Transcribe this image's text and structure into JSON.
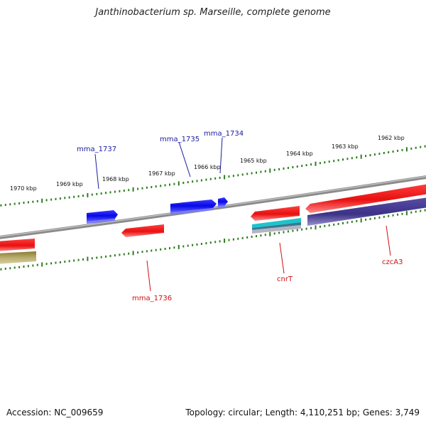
{
  "title": "Janthinobacterium sp. Marseille, complete genome",
  "footer": {
    "accession": "Accession: NC_009659",
    "topology": "Topology: circular; Length: 4,110,251 bp; Genes: 3,749"
  },
  "colors": {
    "backbone": "#7a7a7a",
    "ticks": "#2e7d1f",
    "forward_gene": "#1010ee",
    "reverse_gene": "#ee1010",
    "forward_label": "#1a1aa0",
    "reverse_label": "#cc1111",
    "cds_dark": "#4a3d8f",
    "cds_cyan": "#20c0c8",
    "cds_grey": "#a8a8b8",
    "cds_olive": "#b0a868"
  },
  "ruler": {
    "labels": [
      "1970 kbp",
      "1969 kbp",
      "1968 kbp",
      "1967 kbp",
      "1966 kbp",
      "1965 kbp",
      "1964 kbp",
      "1963 kbp",
      "1962 kbp"
    ]
  },
  "gene_labels": {
    "mma_1737": "mma_1737",
    "mma_1735": "mma_1735",
    "mma_1734": "mma_1734",
    "mma_1736": "mma_1736",
    "cnrT": "cnrT",
    "czcA3": "czcA3"
  },
  "features": [
    {
      "id": "mma_1737",
      "strand": "forward"
    },
    {
      "id": "mma_1735",
      "strand": "forward"
    },
    {
      "id": "mma_1734",
      "strand": "forward"
    },
    {
      "id": "mma_1736",
      "strand": "reverse"
    },
    {
      "id": "cnrT",
      "strand": "reverse"
    },
    {
      "id": "czcA3",
      "strand": "reverse"
    }
  ]
}
